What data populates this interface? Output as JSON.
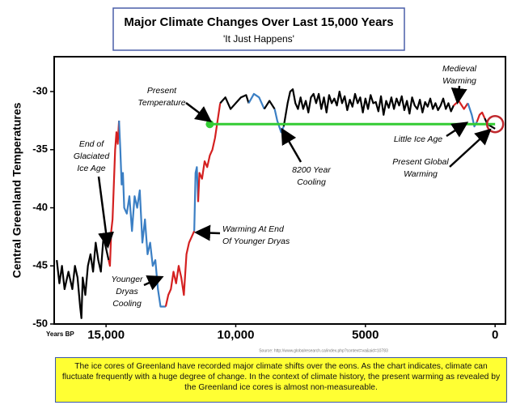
{
  "chart_data": {
    "type": "line",
    "title": "Major Climate Changes Over Last 15,000 Years",
    "subtitle": "'It Just Happens'",
    "y_label": "Central Greenland Temperatures",
    "x_label": "Years BP",
    "source": "Source: http://www.globalresearch.ca/index.php?context=va&aid=10783",
    "caption": "The ice cores of Greenland have recorded major climate shifts over the eons. As the chart indicates, climate can fluctuate frequently with a huge degree of change. In the context of climate history, the present warming as revealed by the Greenland ice cores is almost non-measureable.",
    "xlim": [
      17000,
      -400
    ],
    "ylim": [
      -50,
      -27
    ],
    "xticks": [
      {
        "value": 15000,
        "label": "15,000"
      },
      {
        "value": 10000,
        "label": "10,000"
      },
      5000,
      0
    ],
    "yticks": [
      -30,
      -35,
      -40,
      -45,
      -50
    ],
    "series": [
      {
        "color": "#000000",
        "x": [
          16900,
          16800,
          16700,
          16600,
          16450,
          16300,
          16200,
          16100,
          16000,
          15950,
          15900,
          15800,
          15700,
          15600,
          15500,
          15400,
          15300,
          15200,
          15100,
          15000,
          14900
        ],
        "values": [
          -44.5,
          -46.5,
          -45,
          -47,
          -45.5,
          -47,
          -45,
          -46,
          -48.5,
          -49.5,
          -46,
          -47.5,
          -45,
          -44,
          -45.5,
          -43,
          -44.5,
          -45.5,
          -42.5,
          -43.5,
          -44.5
        ]
      },
      {
        "color": "#d42020",
        "x": [
          14900,
          14850,
          14800,
          14750,
          14700,
          14650,
          14600,
          14550,
          14500
        ],
        "values": [
          -44.5,
          -45,
          -42,
          -41,
          -38,
          -35,
          -33.5,
          -34.5,
          -32.5
        ]
      },
      {
        "color": "#3b7fc4",
        "x": [
          14500,
          14450,
          14400,
          14350,
          14300,
          14200,
          14100,
          14000,
          13900,
          13800,
          13700,
          13600,
          13500,
          13400,
          13300,
          13200,
          13100,
          13000,
          12900,
          12700
        ],
        "values": [
          -32.5,
          -35,
          -38,
          -37,
          -40,
          -40.5,
          -39,
          -42,
          -39,
          -40,
          -38.5,
          -43,
          -41,
          -44,
          -43,
          -45,
          -44.5,
          -47,
          -48.5,
          -48.5
        ]
      },
      {
        "color": "#d42020",
        "x": [
          12700,
          12600,
          12500,
          12400,
          12300,
          12200,
          12100,
          12000,
          11900,
          11800,
          11700,
          11600
        ],
        "values": [
          -48.5,
          -47.5,
          -47,
          -45.5,
          -46.5,
          -45,
          -46,
          -47.5,
          -44,
          -43,
          -42.5,
          -42
        ]
      },
      {
        "color": "#3b7fc4",
        "x": [
          11600,
          11550,
          11500,
          11450
        ],
        "values": [
          -42,
          -37,
          -36.5,
          -39.5
        ]
      },
      {
        "color": "#d42020",
        "x": [
          11450,
          11400,
          11300,
          11200,
          11100,
          11000,
          10900,
          10800,
          10600
        ],
        "values": [
          -39.5,
          -37,
          -37.5,
          -36,
          -36.5,
          -35.5,
          -35,
          -34,
          -31
        ]
      },
      {
        "color": "#000000",
        "x": [
          10600,
          10400,
          10200,
          10000,
          9800,
          9600,
          9500
        ],
        "values": [
          -31,
          -30.5,
          -31.5,
          -31,
          -30.5,
          -30.3,
          -31
        ]
      },
      {
        "color": "#3b7fc4",
        "x": [
          9500,
          9300,
          9100,
          8900
        ],
        "values": [
          -31,
          -30.2,
          -30.5,
          -31.5
        ]
      },
      {
        "color": "#000000",
        "x": [
          8900,
          8700,
          8500
        ],
        "values": [
          -31.5,
          -30.8,
          -31.5
        ]
      },
      {
        "color": "#3b7fc4",
        "x": [
          8500,
          8400,
          8250,
          8150
        ],
        "values": [
          -31.5,
          -32.5,
          -33.5,
          -33
        ]
      },
      {
        "color": "#000000",
        "x": [
          8150,
          8000,
          7900,
          7800,
          7700,
          7600,
          7500,
          7400,
          7300,
          7200,
          7100,
          7000,
          6900,
          6800,
          6700,
          6600,
          6500,
          6400,
          6300,
          6200,
          6100,
          6000,
          5900,
          5800,
          5700,
          5600,
          5500,
          5400,
          5300,
          5200,
          5100,
          5000,
          4900,
          4800,
          4700,
          4600,
          4500,
          4400,
          4300,
          4200,
          4100,
          4000,
          3900,
          3800,
          3700,
          3600,
          3500,
          3400,
          3300,
          3200,
          3100,
          3000,
          2900,
          2800,
          2700,
          2600,
          2500,
          2400,
          2300,
          2200,
          2100,
          2000,
          1900,
          1800,
          1700,
          1600
        ],
        "values": [
          -33,
          -31,
          -30,
          -29.8,
          -31,
          -31.5,
          -30.5,
          -31.5,
          -30.8,
          -31.8,
          -30.5,
          -30.2,
          -31,
          -30.2,
          -31.5,
          -30.5,
          -31.8,
          -30.3,
          -31,
          -30.6,
          -31.2,
          -30,
          -31,
          -30.4,
          -31.6,
          -30.7,
          -31.3,
          -30.2,
          -31,
          -30.5,
          -31.8,
          -30.6,
          -31.5,
          -30.3,
          -31,
          -30.9,
          -31.7,
          -30.4,
          -32,
          -30.8,
          -31.4,
          -30.5,
          -31.5,
          -30.6,
          -31.2,
          -30.4,
          -31.6,
          -30.8,
          -31.9,
          -30.5,
          -31.2,
          -31.5,
          -30.7,
          -31.8,
          -30.9,
          -31.3,
          -30.6,
          -31.5,
          -31,
          -31.6,
          -31.2,
          -30.6,
          -31.5,
          -31,
          -31.7,
          -31.2
        ]
      },
      {
        "color": "#d42020",
        "x": [
          1600,
          1400,
          1200,
          1050
        ],
        "values": [
          -31.2,
          -30.8,
          -31.5,
          -31
        ]
      },
      {
        "color": "#3b7fc4",
        "x": [
          1050,
          900,
          800,
          700
        ],
        "values": [
          -31,
          -32,
          -33,
          -32.6
        ]
      },
      {
        "color": "#d42020",
        "x": [
          700,
          600,
          500,
          400
        ],
        "values": [
          -32.6,
          -32,
          -31.8,
          -32.3
        ]
      },
      {
        "color": "#000000",
        "x": [
          400,
          300,
          150,
          0
        ],
        "values": [
          -32.3,
          -32.8,
          -33,
          -33.2
        ]
      },
      {
        "color": "#33cc33",
        "x": [
          11000,
          0
        ],
        "values": [
          -32.8,
          -32.8
        ]
      }
    ],
    "annotations": [
      {
        "lines": [
          "Present",
          "Temperature"
        ]
      },
      {
        "lines": [
          "End of",
          "Glaciated",
          "Ice Age"
        ]
      },
      {
        "lines": [
          "Younger",
          "Dryas",
          "Cooling"
        ]
      },
      {
        "lines": [
          "Warming At End",
          "Of Younger Dryas"
        ]
      },
      {
        "lines": [
          "8200 Year",
          "Cooling"
        ]
      },
      {
        "lines": [
          "Medieval",
          "Warming"
        ]
      },
      {
        "lines": [
          "Little Ice Age"
        ]
      },
      {
        "lines": [
          "Present Global",
          "Warming"
        ]
      }
    ]
  }
}
